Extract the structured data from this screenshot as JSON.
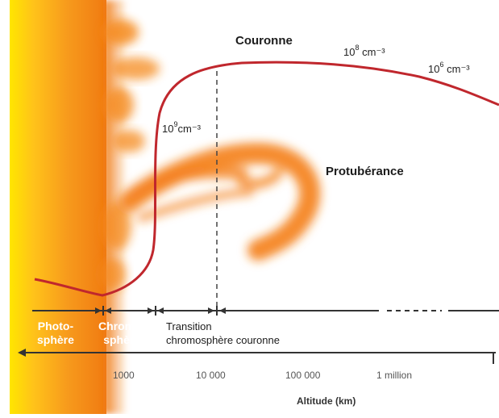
{
  "labels": {
    "corona": "Couronne",
    "prominence": "Protubérance"
  },
  "densities": {
    "d9": {
      "base": "10",
      "exp": "9",
      "unit": "cm⁻³"
    },
    "d8": {
      "base": "10",
      "exp": "8",
      "unit": "cm⁻³"
    },
    "d6": {
      "base": "10",
      "exp": "6",
      "unit": "cm⁻³"
    }
  },
  "zones": {
    "photosphere": [
      "Photo-",
      "sphère"
    ],
    "chromosphere": [
      "Chromo-",
      "sphère"
    ],
    "transition": [
      "Transition",
      "chromosphère couronne"
    ]
  },
  "axis": {
    "title": "Altitude (km)",
    "ticks": [
      "1000",
      "10 000",
      "100 000",
      "1 million"
    ]
  },
  "colors": {
    "curve": "#c0272d",
    "sun_inner": "#ffe600",
    "sun_outer": "#f07a12",
    "axis": "#333333"
  }
}
